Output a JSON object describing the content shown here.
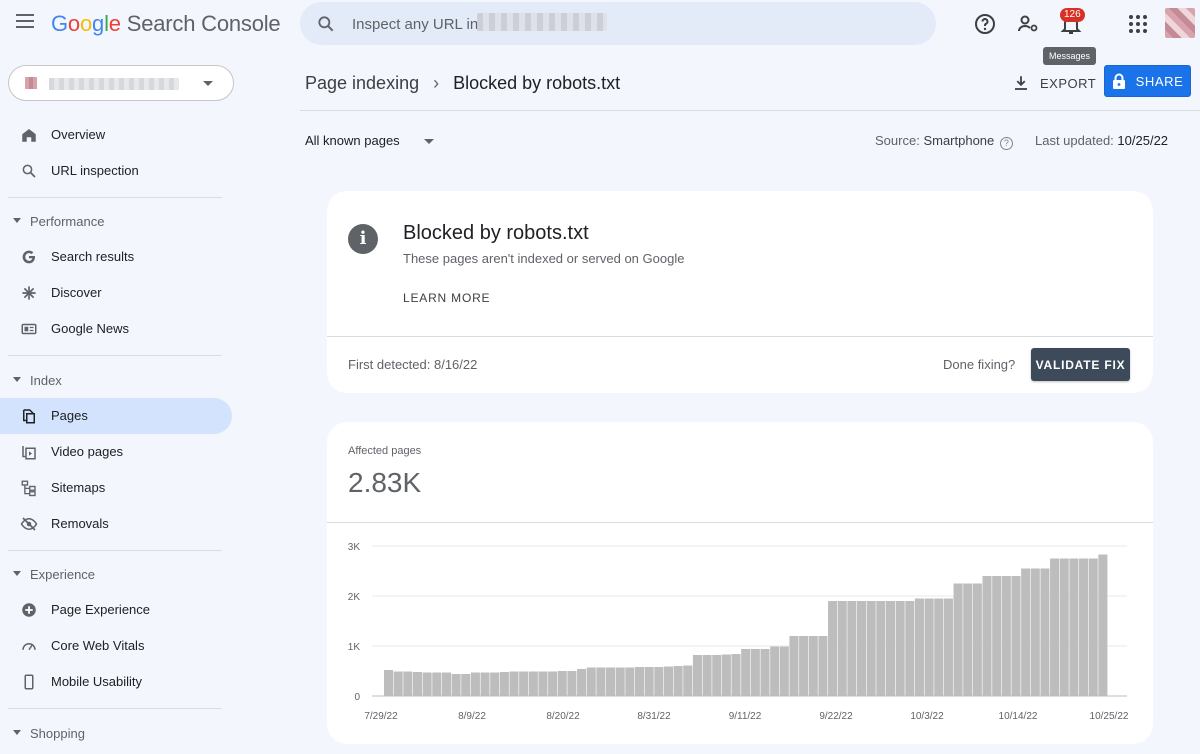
{
  "app": {
    "brand_letters": [
      "G",
      "o",
      "o",
      "g",
      "l",
      "e"
    ],
    "brand_rest": "Search Console"
  },
  "search": {
    "placeholder": "Inspect any URL in"
  },
  "top_icons": [
    "help-icon",
    "manage-users-icon",
    "notifications-icon",
    "apps-grid-icon"
  ],
  "notifications": {
    "count": "126",
    "tooltip": "Messages"
  },
  "sidebar": {
    "items": [
      {
        "label": "Overview",
        "icon": "home-icon"
      },
      {
        "label": "URL inspection",
        "icon": "search-icon"
      }
    ],
    "performance": {
      "title": "Performance",
      "items": [
        {
          "label": "Search results",
          "icon": "google-g-icon"
        },
        {
          "label": "Discover",
          "icon": "asterisk-icon"
        },
        {
          "label": "Google News",
          "icon": "google-news-icon"
        }
      ]
    },
    "index": {
      "title": "Index",
      "items": [
        {
          "label": "Pages",
          "icon": "pages-icon",
          "active": true
        },
        {
          "label": "Video pages",
          "icon": "video-pages-icon"
        },
        {
          "label": "Sitemaps",
          "icon": "sitemap-icon"
        },
        {
          "label": "Removals",
          "icon": "eye-off-icon"
        }
      ]
    },
    "experience": {
      "title": "Experience",
      "items": [
        {
          "label": "Page Experience",
          "icon": "plus-circle-icon"
        },
        {
          "label": "Core Web Vitals",
          "icon": "gauge-icon"
        },
        {
          "label": "Mobile Usability",
          "icon": "phone-icon"
        }
      ]
    },
    "shopping": {
      "title": "Shopping"
    }
  },
  "header": {
    "breadcrumb_parent": "Page indexing",
    "breadcrumb_sep": "›",
    "breadcrumb_current": "Blocked by robots.txt",
    "export_label": "EXPORT",
    "share_label": "SHARE"
  },
  "filters": {
    "scope": "All known pages",
    "source_label": "Source:",
    "source_value": "Smartphone",
    "updated_label": "Last updated:",
    "updated_value": "10/25/22"
  },
  "issue": {
    "title": "Blocked by robots.txt",
    "subtitle": "These pages aren't indexed or served on Google",
    "learn_more": "LEARN MORE",
    "first_detected": "First detected: 8/16/22",
    "done_fixing": "Done fixing?",
    "validate_label": "VALIDATE FIX"
  },
  "affected": {
    "label": "Affected pages",
    "value": "2.83K"
  },
  "colors": {
    "accent": "#1a73e8",
    "nav_active": "#d3e3fd",
    "bar": "#bdbdbd",
    "validate_bg": "#3c4a5a",
    "badge": "#d93025"
  },
  "chart_data": {
    "type": "bar",
    "title": "",
    "xlabel": "",
    "ylabel": "",
    "ylim": [
      0,
      3000
    ],
    "yticks": [
      "0",
      "1K",
      "2K",
      "3K"
    ],
    "xtick_labels": [
      "7/29/22",
      "8/9/22",
      "8/20/22",
      "8/31/22",
      "9/11/22",
      "9/22/22",
      "10/3/22",
      "10/14/22",
      "10/25/22"
    ],
    "grid": true,
    "series": [
      {
        "values": [
          520,
          490,
          490,
          480,
          470,
          470,
          470,
          440,
          440,
          470,
          470,
          470,
          480,
          490,
          490,
          490,
          490,
          490,
          500,
          500,
          540,
          570,
          570,
          570,
          570,
          570,
          580,
          580,
          580,
          590,
          600,
          610,
          820,
          820,
          820,
          830,
          840,
          940,
          940,
          940,
          990,
          990,
          1200,
          1200,
          1200,
          1200,
          1900,
          1900,
          1900,
          1900,
          1900,
          1900,
          1900,
          1900,
          1900,
          1950,
          1950,
          1950,
          1950,
          2250,
          2250,
          2250,
          2400,
          2400,
          2400,
          2400,
          2550,
          2550,
          2550,
          2750,
          2750,
          2750,
          2750,
          2750,
          2830
        ]
      }
    ]
  }
}
